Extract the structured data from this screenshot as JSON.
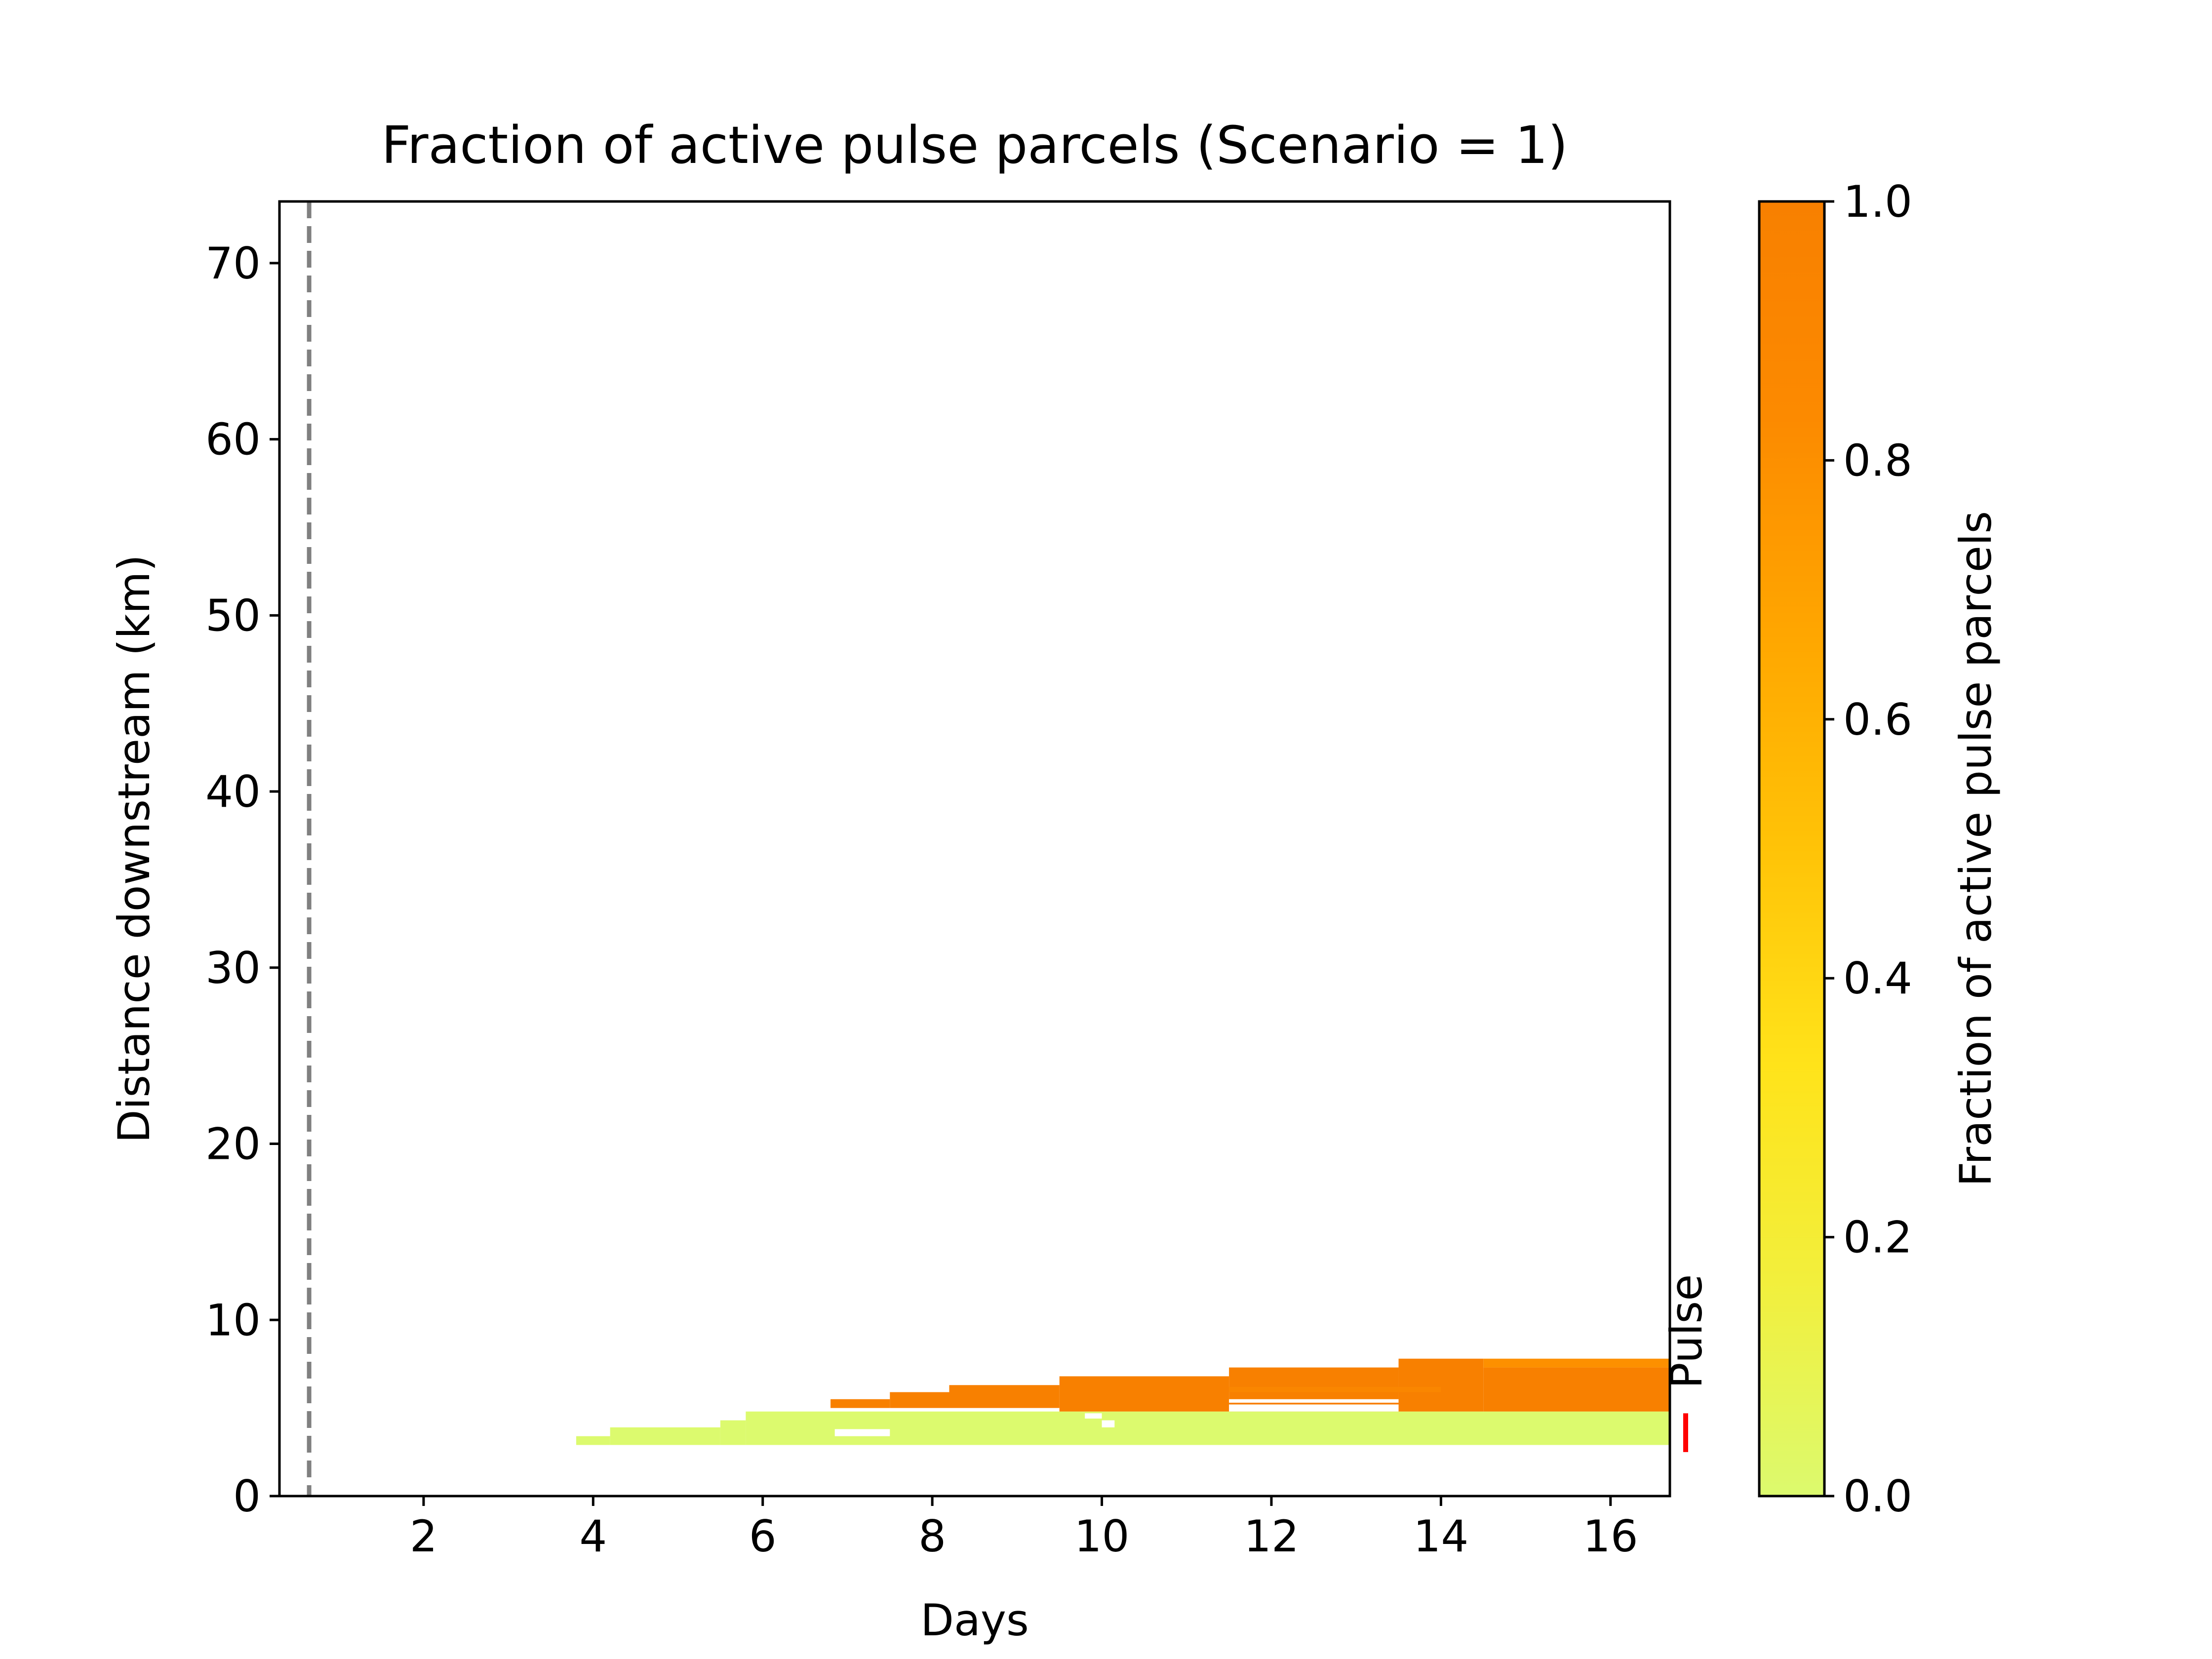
{
  "chart_data": {
    "type": "heatmap",
    "title": "Fraction of active pulse parcels (Scenario = 1)",
    "xlabel": "Days",
    "ylabel": "Distance downstream (km)",
    "xlim": [
      0.3,
      16.7
    ],
    "ylim": [
      0,
      73.5
    ],
    "xticks": [
      2,
      4,
      6,
      8,
      10,
      12,
      14,
      16
    ],
    "yticks": [
      0,
      10,
      20,
      30,
      40,
      50,
      60,
      70
    ],
    "grid": false,
    "colorbar": {
      "label": "Fraction of active pulse parcels",
      "range": [
        0,
        1
      ],
      "ticks": [
        0.0,
        0.2,
        0.4,
        0.6,
        0.8,
        1.0
      ],
      "tick_labels": [
        "0.0",
        "0.2",
        "0.4",
        "0.6",
        "0.8",
        "1.0"
      ],
      "colors": [
        "#dcfa6e",
        "#f2ef3c",
        "#ffe31a",
        "#ffc307",
        "#ffa600",
        "#fc8a00",
        "#f88000"
      ]
    },
    "reference_line": {
      "x": 0.65,
      "color": "#808080",
      "style": "dashed"
    },
    "pulse_marker": {
      "label": "Pulse",
      "y_range": [
        2.5,
        4.7
      ],
      "color": "#ff0000"
    },
    "cells": [
      {
        "x0": 3.8,
        "x1": 4.2,
        "y0": 2.9,
        "y1": 3.4,
        "value": 0.0
      },
      {
        "x0": 4.2,
        "x1": 5.5,
        "y0": 2.9,
        "y1": 3.9,
        "value": 0.0
      },
      {
        "x0": 5.5,
        "x1": 5.8,
        "y0": 2.9,
        "y1": 4.3,
        "value": 0.0
      },
      {
        "x0": 5.8,
        "x1": 16.7,
        "y0": 2.9,
        "y1": 4.8,
        "value": 0.0
      },
      {
        "x0": 6.8,
        "x1": 7.5,
        "y0": 5.0,
        "y1": 5.5,
        "value": 1.0
      },
      {
        "x0": 7.5,
        "x1": 8.2,
        "y0": 5.0,
        "y1": 5.9,
        "value": 1.0
      },
      {
        "x0": 8.2,
        "x1": 9.5,
        "y0": 5.0,
        "y1": 6.3,
        "value": 1.0
      },
      {
        "x0": 9.5,
        "x1": 11.5,
        "y0": 4.8,
        "y1": 6.8,
        "value": 1.0
      },
      {
        "x0": 11.5,
        "x1": 13.5,
        "y0": 5.5,
        "y1": 7.3,
        "value": 1.0
      },
      {
        "x0": 11.5,
        "x1": 13.5,
        "y0": 4.8,
        "y1": 5.3,
        "value": 1.0
      },
      {
        "x0": 13.5,
        "x1": 14.5,
        "y0": 4.8,
        "y1": 7.8,
        "value": 1.0
      },
      {
        "x0": 14.5,
        "x1": 16.7,
        "y0": 7.3,
        "y1": 7.8,
        "value": 0.8
      },
      {
        "x0": 14.5,
        "x1": 16.7,
        "y0": 4.8,
        "y1": 7.3,
        "value": 1.0
      },
      {
        "x0": 11.5,
        "x1": 14.0,
        "y0": 5.9,
        "y1": 6.2,
        "value": 0.9
      }
    ],
    "gaps": [
      {
        "x0": 6.85,
        "x1": 7.5,
        "y0": 3.4,
        "y1": 3.8
      },
      {
        "x0": 10.0,
        "x1": 10.15,
        "y0": 3.9,
        "y1": 4.3
      },
      {
        "x0": 9.8,
        "x1": 10.0,
        "y0": 4.4,
        "y1": 4.7
      },
      {
        "x0": 11.5,
        "x1": 13.5,
        "y0": 4.8,
        "y1": 5.2
      }
    ]
  }
}
